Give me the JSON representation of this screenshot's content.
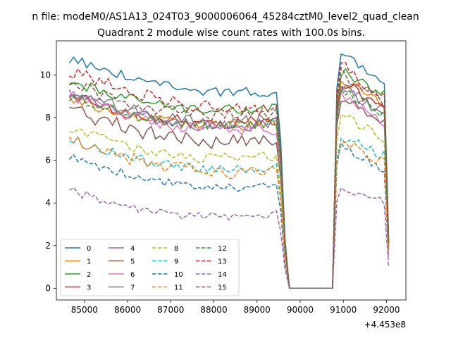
{
  "figure": {
    "suptitle": "n file: modeM0/AS1A13_024T03_9000006064_45284cztM0_level2_quad_clean",
    "title": "Quadrant 2 module wise count rates with 100.0s bins.",
    "offset_label": "+4.453e8"
  },
  "chart_data": {
    "type": "line",
    "title": "Quadrant 2 module wise count rates with 100.0s bins.",
    "xlabel": "",
    "ylabel": "",
    "x_offset": 445300000,
    "xlim": [
      84350,
      92450
    ],
    "ylim": [
      -0.55,
      11.6
    ],
    "x_ticks": [
      85000,
      86000,
      87000,
      88000,
      89000,
      90000,
      91000,
      92000
    ],
    "x_tick_labels": [
      "85000",
      "86000",
      "87000",
      "88000",
      "89000",
      "90000",
      "91000",
      "92000"
    ],
    "y_ticks": [
      0,
      2,
      4,
      6,
      8,
      10
    ],
    "y_tick_labels": [
      "0",
      "2",
      "4",
      "6",
      "8",
      "10"
    ],
    "grid": false,
    "legend_position": "lower-left",
    "legend_columns": 4,
    "series": [
      {
        "name": "0",
        "color": "#1f77b4",
        "dash": "solid",
        "base_start": 10.8,
        "base_end": 9.2,
        "post_peak": 11.0,
        "post_end": 9.7,
        "noise": 0.25
      },
      {
        "name": "1",
        "color": "#ff7f0e",
        "dash": "solid",
        "base_start": 8.9,
        "base_end": 7.8,
        "post_peak": 10.0,
        "post_end": 8.5,
        "noise": 0.25
      },
      {
        "name": "2",
        "color": "#2ca02c",
        "dash": "solid",
        "base_start": 9.7,
        "base_end": 8.5,
        "post_peak": 10.3,
        "post_end": 9.0,
        "noise": 0.25
      },
      {
        "name": "3",
        "color": "#d62728",
        "dash": "solid",
        "base_start": 9.0,
        "base_end": 7.9,
        "post_peak": 9.8,
        "post_end": 8.4,
        "noise": 0.3
      },
      {
        "name": "4",
        "color": "#9467bd",
        "dash": "solid",
        "base_start": 9.1,
        "base_end": 7.7,
        "post_peak": 9.4,
        "post_end": 8.2,
        "noise": 0.3
      },
      {
        "name": "5",
        "color": "#8c564b",
        "dash": "solid",
        "base_start": 8.4,
        "base_end": 6.9,
        "post_peak": 9.0,
        "post_end": 7.5,
        "noise": 0.35
      },
      {
        "name": "6",
        "color": "#e377c2",
        "dash": "solid",
        "base_start": 9.0,
        "base_end": 7.5,
        "post_peak": 9.3,
        "post_end": 7.8,
        "noise": 0.3
      },
      {
        "name": "7",
        "color": "#7f7f7f",
        "dash": "solid",
        "base_start": 9.2,
        "base_end": 7.9,
        "post_peak": 9.6,
        "post_end": 8.0,
        "noise": 0.3
      },
      {
        "name": "8",
        "color": "#bcbd22",
        "dash": "dashed",
        "base_start": 7.5,
        "base_end": 6.2,
        "post_peak": 8.2,
        "post_end": 6.9,
        "noise": 0.25
      },
      {
        "name": "9",
        "color": "#17becf",
        "dash": "dashed",
        "base_start": 7.0,
        "base_end": 5.6,
        "post_peak": 7.1,
        "post_end": 6.2,
        "noise": 0.25
      },
      {
        "name": "10",
        "color": "#1f77b4",
        "dash": "dashed",
        "base_start": 6.2,
        "base_end": 4.8,
        "post_peak": 6.8,
        "post_end": 5.5,
        "noise": 0.2
      },
      {
        "name": "11",
        "color": "#ff7f0e",
        "dash": "dashed",
        "base_start": 7.0,
        "base_end": 5.5,
        "post_peak": 7.0,
        "post_end": 5.8,
        "noise": 0.3
      },
      {
        "name": "12",
        "color": "#2ca02c",
        "dash": "dashed",
        "base_start": 9.0,
        "base_end": 7.8,
        "post_peak": 9.4,
        "post_end": 8.1,
        "noise": 0.25
      },
      {
        "name": "13",
        "color": "#d62728",
        "dash": "dashed",
        "base_start": 10.2,
        "base_end": 8.4,
        "post_peak": 10.6,
        "post_end": 8.8,
        "noise": 0.3
      },
      {
        "name": "14",
        "color": "#9467bd",
        "dash": "dashed",
        "base_start": 4.6,
        "base_end": 3.5,
        "post_peak": 4.8,
        "post_end": 4.0,
        "noise": 0.2
      },
      {
        "name": "15",
        "color": "#8c564b",
        "dash": "dashed",
        "base_start": 9.6,
        "base_end": 8.2,
        "post_peak": 10.2,
        "post_end": 8.6,
        "noise": 0.3
      }
    ],
    "gap_x": [
      89750,
      90750
    ],
    "x_start": 84650,
    "x_end": 92050,
    "step": 100
  }
}
